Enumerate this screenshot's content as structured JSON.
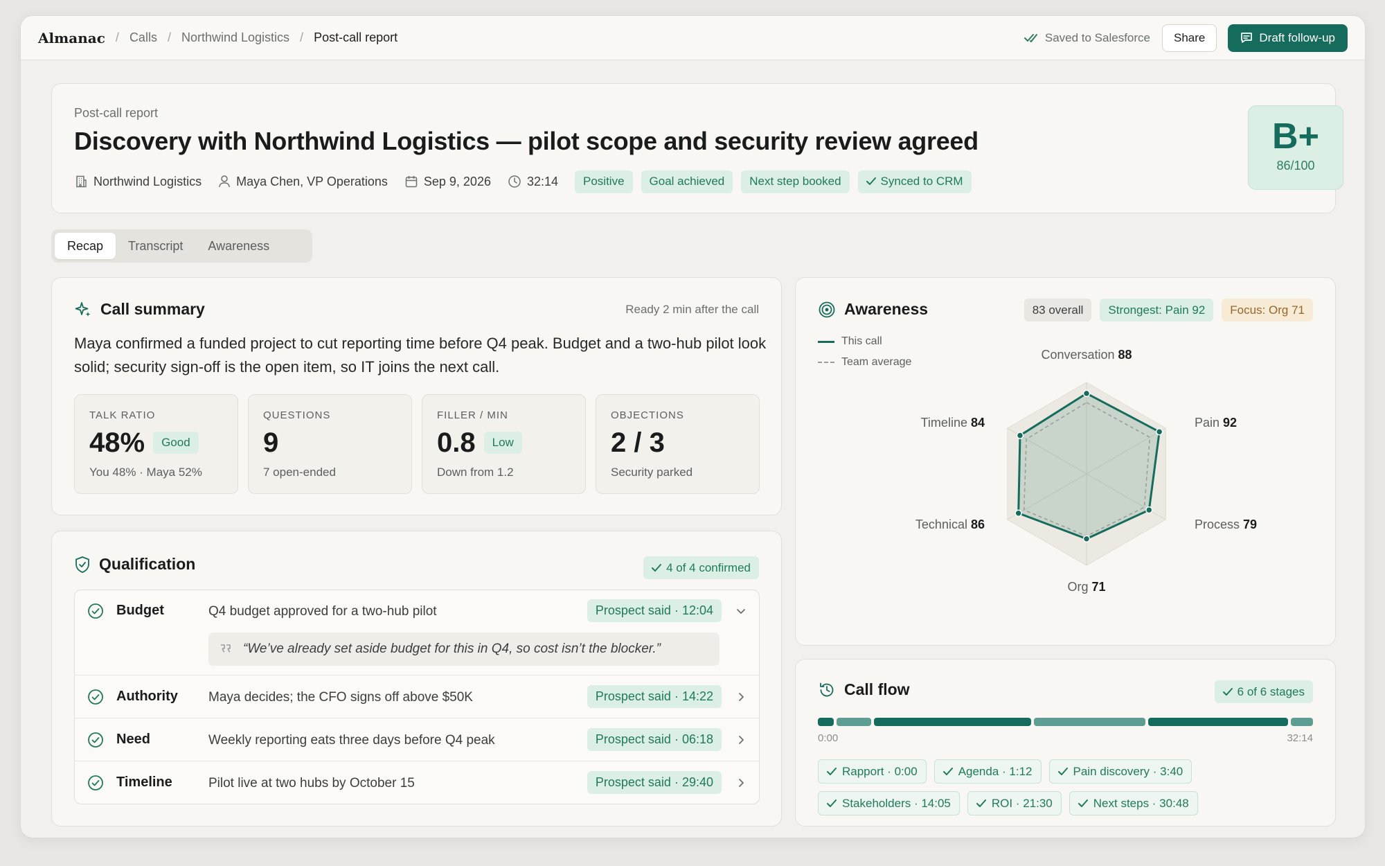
{
  "app": {
    "brand": "Almanac"
  },
  "breadcrumb": [
    "Calls",
    "Northwind Logistics",
    "Post-call report"
  ],
  "topbar": {
    "saved_label": "Saved to Salesforce",
    "share_label": "Share",
    "draft_label": "Draft follow-up"
  },
  "header": {
    "eyebrow": "Post-call report",
    "title": "Discovery with Northwind Logistics — pilot scope and security review agreed",
    "company": "Northwind Logistics",
    "contact": "Maya Chen, VP Operations",
    "date": "Sep 9, 2026",
    "duration": "32:14",
    "tags": [
      "Positive",
      "Goal achieved",
      "Next step booked"
    ],
    "crm_tag": "Synced to CRM",
    "grade": "B+",
    "score": "86/100"
  },
  "tabs": [
    "Recap",
    "Transcript",
    "Awareness"
  ],
  "summary": {
    "title": "Call summary",
    "ready": "Ready 2 min after the call",
    "text": "Maya confirmed a funded project to cut reporting time before Q4 peak. Budget and a two-hub pilot look solid; security sign-off is the open item, so IT joins the next call.",
    "stats": [
      {
        "label": "TALK RATIO",
        "value": "48%",
        "badge": "Good",
        "sub": "You 48% · Maya 52%"
      },
      {
        "label": "QUESTIONS",
        "value": "9",
        "badge": "",
        "sub": "7 open-ended"
      },
      {
        "label": "FILLER / MIN",
        "value": "0.8",
        "badge": "Low",
        "sub": "Down from 1.2"
      },
      {
        "label": "OBJECTIONS",
        "value": "2 / 3",
        "badge": "",
        "sub": "Security parked"
      }
    ]
  },
  "qualification": {
    "title": "Qualification",
    "confirmed": "4 of 4 confirmed",
    "rows": [
      {
        "name": "Budget",
        "desc": "Q4 budget approved for a two-hub pilot",
        "source": "Prospect said · 12:04",
        "quote": "“We’ve already set aside budget for this in Q4, so cost isn’t the blocker.”"
      },
      {
        "name": "Authority",
        "desc": "Maya decides; the CFO signs off above $50K",
        "source": "Prospect said · 14:22"
      },
      {
        "name": "Need",
        "desc": "Weekly reporting eats three days before Q4 peak",
        "source": "Prospect said · 06:18"
      },
      {
        "name": "Timeline",
        "desc": "Pilot live at two hubs by October 15",
        "source": "Prospect said · 29:40"
      }
    ]
  },
  "awareness": {
    "title": "Awareness",
    "overall": "83 overall",
    "strongest": "Strongest: Pain 92",
    "focus": "Focus: Org 71",
    "legend": [
      "This call",
      "Team average"
    ],
    "accent": "#166c5c"
  },
  "chart_data": {
    "type": "radar",
    "axes": [
      "Conversation",
      "Pain",
      "Process",
      "Org",
      "Technical",
      "Timeline"
    ],
    "series": [
      {
        "name": "This call",
        "values": [
          88,
          92,
          79,
          71,
          86,
          84
        ],
        "labels": [
          "88",
          "92",
          "79",
          "71",
          "86",
          "84"
        ]
      },
      {
        "name": "Team average",
        "values": [
          78,
          80,
          73,
          68,
          79,
          76
        ]
      }
    ],
    "range": [
      0,
      100
    ]
  },
  "callflow": {
    "title": "Call flow",
    "stages_done": "6 of 6 stages",
    "start": "0:00",
    "end": "32:14",
    "total_seconds": 1934,
    "stages": [
      {
        "label": "Rapport · 0:00",
        "start": 0
      },
      {
        "label": "Agenda · 1:12",
        "start": 72
      },
      {
        "label": "Pain discovery · 3:40",
        "start": 220
      },
      {
        "label": "Stakeholders · 14:05",
        "start": 845
      },
      {
        "label": "ROI · 21:30",
        "start": 1290
      },
      {
        "label": "Next steps · 30:48",
        "start": 1848
      }
    ]
  }
}
